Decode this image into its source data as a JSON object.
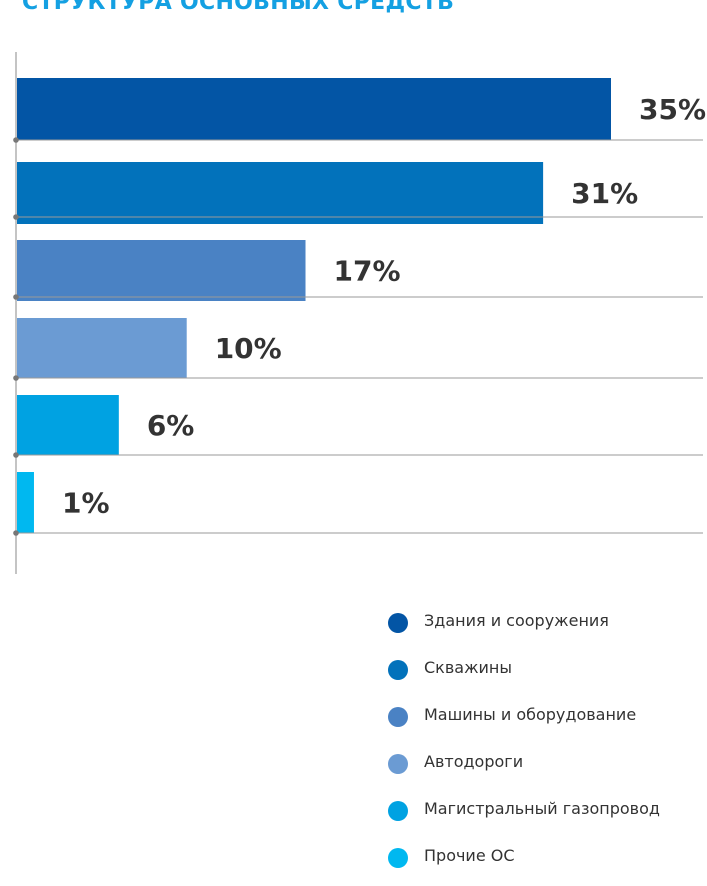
{
  "chart_data": {
    "type": "bar",
    "orientation": "horizontal",
    "title": "СТРУКТУРА ОСНОВНЫХ СРЕДСТВ",
    "xlim": [
      0,
      35
    ],
    "categories": [
      "Здания и сооружения",
      "Скважины",
      "Машины и оборудование",
      "Автодороги",
      " Магистральный газопровод",
      "Прочие ОС"
    ],
    "values": [
      35,
      31,
      17,
      10,
      6,
      1
    ],
    "data_labels": [
      "35%",
      "31%",
      "17%",
      "10%",
      "6%",
      "1%"
    ],
    "colors": [
      "#0355a5",
      "#0272bb",
      "#4a82c4",
      "#6b9bd3",
      "#00a2e2",
      "#00b8f0"
    ],
    "legend_position": "bottom-right",
    "grid": false
  }
}
